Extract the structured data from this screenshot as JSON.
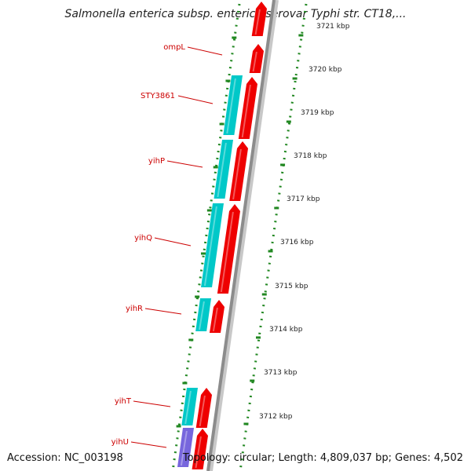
{
  "title": "Salmonella enterica subsp. enterica serovar Typhi str. CT18,...",
  "accession": "Accession: NC_003198",
  "summary": "Topology: circular; Length: 4,809,037 bp; Genes: 4,502",
  "colors": {
    "forward_cds": "#ee0000",
    "reverse_cds": "#00c8c8",
    "rna": "#7766dd",
    "label": "#cc0000",
    "backbone": "#999999",
    "tick": "#228822"
  },
  "gene_labels": [
    "ompL",
    "STY3861",
    "yihP",
    "yihQ",
    "yihR",
    "yihT",
    "yihU"
  ],
  "ruler_labels": [
    "3721 kbp",
    "3720 kbp",
    "3719 kbp",
    "3718 kbp",
    "3717 kbp",
    "3716 kbp",
    "3715 kbp",
    "3714 kbp",
    "3713 kbp",
    "3712 kbp"
  ]
}
